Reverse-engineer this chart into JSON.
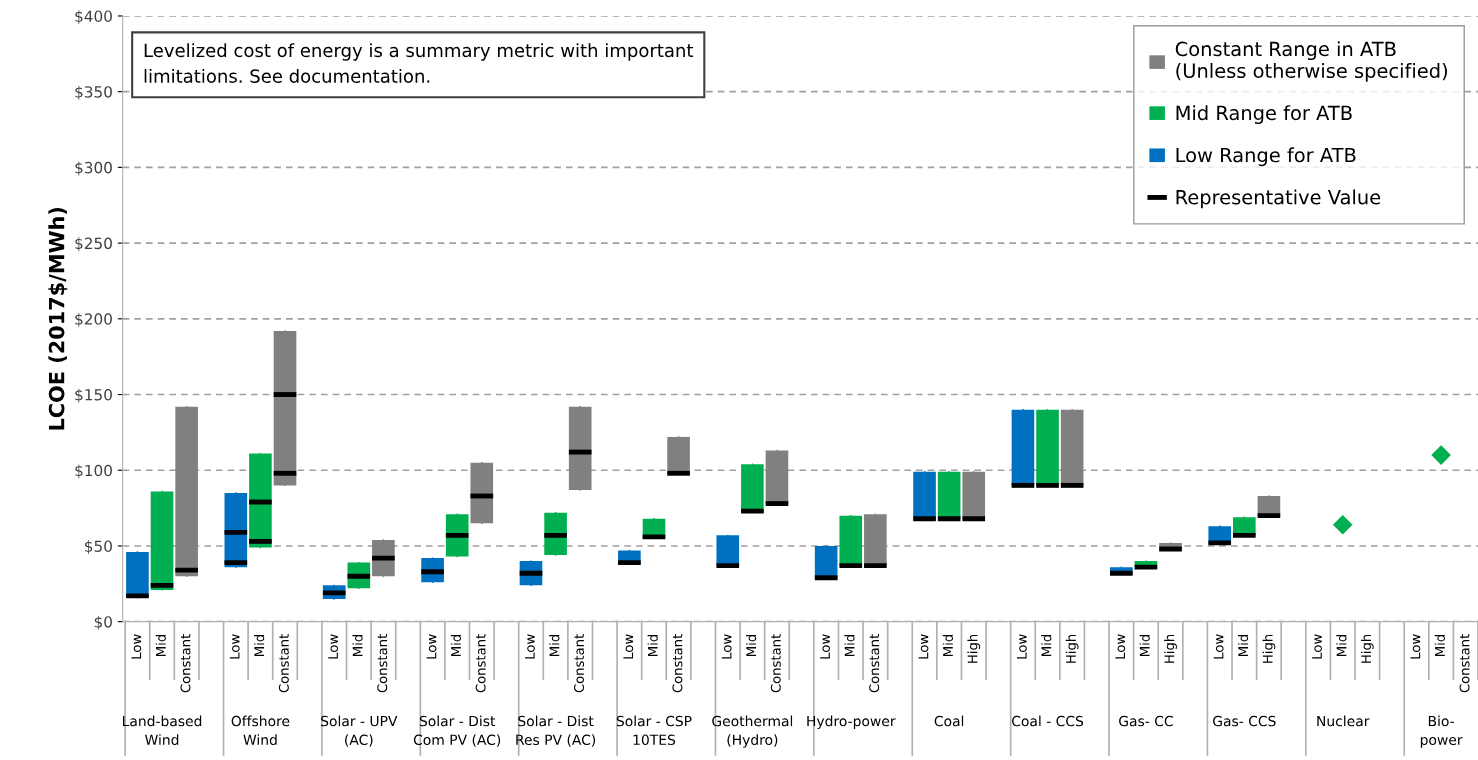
{
  "chart_data": {
    "type": "box",
    "ylabel": "LCOE (2017$/MWh)",
    "categories": [
      "Low",
      "Mid",
      "Constant",
      null,
      "Low",
      "Mid",
      "Constant",
      null,
      "Low",
      "Mid",
      "Constant",
      null,
      "Low",
      "Mid",
      "Constant",
      null,
      "Low",
      "Mid",
      "Constant",
      null,
      "Low",
      "Mid",
      "Constant",
      null,
      "Low",
      "Mid",
      "Constant",
      null,
      "Low",
      "Mid",
      "Constant",
      null,
      "Low",
      "Mid",
      "High",
      null,
      "Low",
      "Mid",
      "High",
      null,
      "Low",
      "Mid",
      "High",
      null,
      "Low",
      "Mid",
      "High",
      null,
      "Low",
      "Mid",
      "High",
      null,
      "Low",
      "Mid",
      "Constant"
    ],
    "series": [
      {
        "name": "Constant Range in ATB\n(Unless otherwise specified)",
        "color": "#808080",
        "boxes": [
          null,
          null,
          {
            "low": 30,
            "q1": 30,
            "median": 34,
            "q3": 142,
            "high": 142
          },
          null,
          null,
          null,
          {
            "low": 90,
            "q1": 90,
            "median": 98,
            "mean": 150,
            "q3": 192,
            "high": 192
          },
          null,
          null,
          null,
          {
            "low": 30,
            "q1": 30,
            "median": 42,
            "q3": 54,
            "high": 54
          },
          null,
          null,
          null,
          {
            "low": 65,
            "q1": 65,
            "median": 83,
            "q3": 105,
            "high": 105
          },
          null,
          null,
          null,
          {
            "low": 87,
            "q1": 87,
            "median": 112,
            "q3": 142,
            "high": 142
          },
          null,
          null,
          null,
          {
            "low": 97,
            "q1": 97,
            "median": 98,
            "q3": 122,
            "high": 122
          },
          null,
          null,
          null,
          {
            "low": 78,
            "q1": 78,
            "median": 78,
            "q3": 113,
            "high": 113
          },
          null,
          null,
          null,
          {
            "low": 37,
            "q1": 37,
            "median": 37,
            "q3": 71,
            "high": 71
          },
          null,
          null,
          null,
          {
            "low": 68,
            "q1": 68,
            "median": 68,
            "q3": 99,
            "high": 99
          },
          null,
          null,
          null,
          {
            "low": 90,
            "q1": 90,
            "median": 90,
            "q3": 140,
            "high": 140
          },
          null,
          null,
          null,
          {
            "low": 47,
            "q1": 47,
            "median": 48,
            "q3": 52,
            "high": 52
          },
          null,
          null,
          null,
          {
            "low": 70,
            "q1": 70,
            "median": 70,
            "q3": 83,
            "high": 83
          },
          null,
          null,
          null,
          null,
          null,
          null,
          null,
          null
        ]
      },
      {
        "name": "Mid Range for ATB",
        "color": "#00b050",
        "boxes": [
          null,
          {
            "low": 21,
            "q1": 21,
            "median": 24,
            "q3": 86,
            "high": 86
          },
          null,
          null,
          null,
          {
            "low": 49,
            "q1": 49,
            "median": 53,
            "mean": 79,
            "q3": 111,
            "high": 111
          },
          null,
          null,
          null,
          {
            "low": 22,
            "q1": 22,
            "median": 30,
            "q3": 39,
            "high": 39
          },
          null,
          null,
          null,
          {
            "low": 43,
            "q1": 43,
            "median": 57,
            "q3": 71,
            "high": 71
          },
          null,
          null,
          null,
          {
            "low": 44,
            "q1": 44,
            "median": 57,
            "q3": 72,
            "high": 72
          },
          null,
          null,
          null,
          {
            "low": 55,
            "q1": 55,
            "median": 56,
            "q3": 68,
            "high": 68
          },
          null,
          null,
          null,
          {
            "low": 72,
            "q1": 72,
            "median": 73,
            "q3": 104,
            "high": 104
          },
          null,
          null,
          null,
          {
            "low": 37,
            "q1": 37,
            "median": 37,
            "q3": 70,
            "high": 70
          },
          null,
          null,
          null,
          {
            "low": 68,
            "q1": 68,
            "median": 68,
            "q3": 99,
            "high": 99
          },
          null,
          null,
          null,
          {
            "low": 90,
            "q1": 90,
            "median": 90,
            "q3": 140,
            "high": 140
          },
          null,
          null,
          null,
          {
            "low": 36,
            "q1": 36,
            "median": 36,
            "q3": 40,
            "high": 40
          },
          null,
          null,
          null,
          {
            "low": 57,
            "q1": 57,
            "median": 57,
            "q3": 69,
            "high": 69
          },
          null,
          null,
          null,
          null,
          null,
          null,
          null,
          null,
          null
        ]
      },
      {
        "name": "Low Range for ATB",
        "color": "#0070c0",
        "boxes": [
          {
            "low": 16,
            "q1": 16,
            "median": 17,
            "q3": 46,
            "high": 46
          },
          null,
          null,
          null,
          {
            "low": 36,
            "q1": 36,
            "median": 39,
            "mean": 59,
            "q3": 85,
            "high": 85
          },
          null,
          null,
          null,
          {
            "low": 15,
            "q1": 15,
            "median": 19,
            "q3": 24,
            "high": 24
          },
          null,
          null,
          null,
          {
            "low": 26,
            "q1": 26,
            "median": 33,
            "q3": 42,
            "high": 42
          },
          null,
          null,
          null,
          {
            "low": 24,
            "q1": 24,
            "median": 32,
            "q3": 40,
            "high": 40
          },
          null,
          null,
          null,
          {
            "low": 38,
            "q1": 38,
            "median": 39,
            "q3": 47,
            "high": 47
          },
          null,
          null,
          null,
          {
            "low": 37,
            "q1": 37,
            "median": 37,
            "q3": 57,
            "high": 57
          },
          null,
          null,
          null,
          {
            "low": 28,
            "q1": 28,
            "median": 29,
            "q3": 50,
            "high": 50
          },
          null,
          null,
          null,
          {
            "low": 68,
            "q1": 68,
            "median": 68,
            "q3": 99,
            "high": 99
          },
          null,
          null,
          null,
          {
            "low": 90,
            "q1": 90,
            "median": 90,
            "q3": 140,
            "high": 140
          },
          null,
          null,
          null,
          {
            "low": 31,
            "q1": 31,
            "median": 32,
            "q3": 36,
            "high": 36
          },
          null,
          null,
          null,
          {
            "low": 51,
            "q1": 51,
            "median": 52,
            "q3": 63,
            "high": 63
          },
          null,
          null,
          null,
          null,
          null,
          null,
          null,
          null,
          null,
          null
        ]
      },
      {
        "name": "Representative Value",
        "color": "#000000",
        "boxes": [
          null,
          null,
          null,
          null,
          null,
          null,
          null,
          null,
          null,
          null,
          null,
          null,
          null,
          null,
          null,
          null,
          null,
          null,
          null,
          null,
          null,
          null,
          null,
          null,
          null,
          null,
          null,
          null,
          null,
          null,
          null,
          null,
          null,
          null,
          null,
          null,
          null,
          null,
          null,
          null,
          null,
          null,
          null,
          null,
          null,
          null,
          null,
          null,
          null,
          null,
          null,
          null,
          null,
          null,
          null
        ]
      },
      {
        "type": "scatter",
        "marker": "diamond",
        "color": "#00b050",
        "values": [
          null,
          null,
          null,
          null,
          null,
          null,
          null,
          null,
          null,
          null,
          null,
          null,
          null,
          null,
          null,
          null,
          null,
          null,
          null,
          null,
          null,
          null,
          null,
          null,
          null,
          null,
          null,
          null,
          null,
          null,
          null,
          null,
          null,
          null,
          null,
          null,
          null,
          null,
          null,
          null,
          null,
          null,
          null,
          null,
          null,
          null,
          null,
          null,
          null,
          64,
          null,
          null,
          null,
          110,
          null
        ]
      }
    ],
    "ylim": [
      0,
      400
    ],
    "yticks": [
      {
        "value": 0,
        "label": "$0"
      },
      {
        "value": 50,
        "label": "$50"
      },
      {
        "value": 100,
        "label": "$100"
      },
      {
        "value": 150,
        "label": "$150"
      },
      {
        "value": 200,
        "label": "$200"
      },
      {
        "value": 250,
        "label": "$250"
      },
      {
        "value": 300,
        "label": "$300"
      },
      {
        "value": 350,
        "label": "$350"
      },
      {
        "value": 400,
        "label": "$400"
      }
    ],
    "grid": "y",
    "legend": "top right",
    "annotations": [
      "Levelized cost of energy is a summary metric with important\nlimitations. See documentation.",
      "Land-based\nWind",
      "Offshore\nWind",
      "Solar - UPV\n(AC)",
      "Solar - Dist\nCom PV (AC)",
      "Solar - Dist\nRes PV (AC)",
      "Solar - CSP\n10TES",
      "Geothermal\n(Hydro)",
      "Hydro-power",
      "Coal",
      "Coal - CCS",
      "Gas- CC",
      "Gas- CCS",
      "Nuclear",
      "Bio-\npower"
    ]
  }
}
